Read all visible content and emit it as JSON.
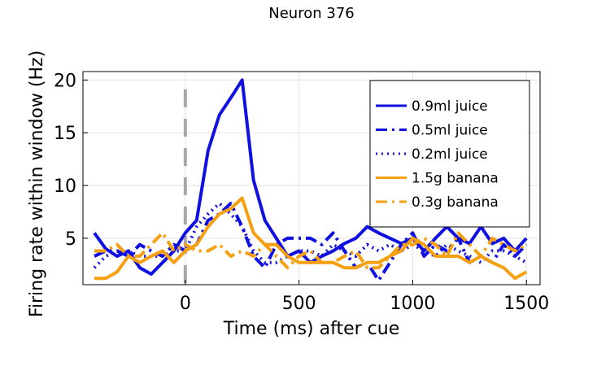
{
  "chart_data": {
    "type": "line",
    "title": "Neuron 376",
    "xlabel": "Time (ms) after cue",
    "ylabel": "Firing rate within window (Hz)",
    "xlim": [
      -450,
      1560
    ],
    "ylim": [
      0.6,
      20.8
    ],
    "xticks": [
      0,
      500,
      1000,
      1500
    ],
    "yticks": [
      5,
      10,
      15,
      20
    ],
    "grid": true,
    "legend_position": "top-right",
    "cue_line_x": 0,
    "series": [
      {
        "name": "0.9ml juice",
        "color": "#1010e0",
        "dash": "solid",
        "x": [
          -400,
          -350,
          -300,
          -250,
          -200,
          -150,
          -100,
          -50,
          0,
          50,
          100,
          150,
          200,
          250,
          300,
          350,
          400,
          450,
          500,
          550,
          600,
          650,
          700,
          750,
          800,
          850,
          900,
          950,
          1000,
          1050,
          1100,
          1150,
          1200,
          1250,
          1300,
          1350,
          1400,
          1450,
          1500
        ],
        "y": [
          5.5,
          4,
          3.3,
          3.8,
          2.2,
          1.6,
          2.7,
          3.8,
          5.5,
          6.7,
          13.3,
          16.7,
          18.3,
          20,
          10.5,
          6.7,
          5,
          3.3,
          3.8,
          2.7,
          3.3,
          3.8,
          4.5,
          5,
          6.1,
          5.5,
          5,
          4.5,
          5,
          3.8,
          5,
          6.1,
          5,
          4.5,
          6.1,
          4.5,
          5,
          3.8,
          5
        ]
      },
      {
        "name": "0.5ml juice",
        "color": "#1010e0",
        "dash": "dashdot",
        "x": [
          -400,
          -350,
          -300,
          -250,
          -200,
          -150,
          -100,
          -50,
          0,
          50,
          100,
          150,
          200,
          250,
          300,
          350,
          400,
          450,
          500,
          550,
          600,
          650,
          700,
          750,
          800,
          850,
          900,
          950,
          1000,
          1050,
          1100,
          1150,
          1200,
          1250,
          1300,
          1350,
          1400,
          1450,
          1500
        ],
        "y": [
          3.3,
          3.8,
          3.8,
          3.3,
          4.4,
          3.8,
          3.3,
          4.4,
          3.8,
          4.4,
          6.7,
          7.3,
          8.3,
          6.1,
          3.3,
          2.2,
          4.4,
          5,
          5,
          5,
          4.4,
          5.5,
          3.8,
          2.2,
          2.7,
          1,
          2.7,
          4.4,
          5.5,
          3.3,
          4.4,
          3.8,
          5,
          2.7,
          3.3,
          2.7,
          4.4,
          3.3,
          4.4
        ]
      },
      {
        "name": "0.2ml juice",
        "color": "#1010e0",
        "dash": "dotted",
        "x": [
          -400,
          -350,
          -300,
          -250,
          -200,
          -150,
          -100,
          -50,
          0,
          50,
          100,
          150,
          200,
          250,
          300,
          350,
          400,
          450,
          500,
          550,
          600,
          650,
          700,
          750,
          800,
          850,
          900,
          950,
          1000,
          1050,
          1100,
          1150,
          1200,
          1250,
          1300,
          1350,
          1400,
          1450,
          1500
        ],
        "y": [
          2.2,
          3.3,
          3.8,
          3.8,
          3.3,
          3.3,
          3.3,
          3.8,
          3.8,
          6.1,
          7.3,
          8.3,
          7.3,
          6.1,
          3.8,
          2.7,
          2.7,
          3.3,
          3.8,
          3.8,
          3.3,
          4.4,
          3.8,
          3.3,
          4.4,
          3.8,
          4.4,
          3.8,
          4.4,
          3.8,
          3.3,
          4.4,
          3.8,
          3.3,
          2.7,
          3.8,
          3.8,
          3.3,
          2.7
        ]
      },
      {
        "name": "1.5g banana",
        "color": "#f5a010",
        "dash": "solid",
        "x": [
          -400,
          -350,
          -300,
          -250,
          -200,
          -150,
          -100,
          -50,
          0,
          50,
          100,
          150,
          200,
          250,
          300,
          350,
          400,
          450,
          500,
          550,
          600,
          650,
          700,
          750,
          800,
          850,
          900,
          950,
          1000,
          1050,
          1100,
          1150,
          1200,
          1250,
          1300,
          1350,
          1400,
          1450,
          1500
        ],
        "y": [
          1.2,
          1.2,
          1.8,
          3.3,
          2.7,
          3.3,
          3.8,
          2.7,
          3.8,
          4.4,
          6.1,
          7.3,
          7.8,
          8.8,
          5.5,
          4.4,
          4.4,
          3.3,
          2.7,
          2.7,
          2.7,
          2.7,
          2.2,
          2.2,
          2.7,
          2.7,
          3.3,
          3.8,
          5,
          4.4,
          3.3,
          3.3,
          3.3,
          2.7,
          3.3,
          2.7,
          2.2,
          1.2,
          1.8
        ]
      },
      {
        "name": "0.3g banana",
        "color": "#f5a010",
        "dash": "dashdot",
        "x": [
          -400,
          -350,
          -300,
          -250,
          -200,
          -150,
          -100,
          -50,
          0,
          50,
          100,
          150,
          200,
          250,
          300,
          350,
          400,
          450,
          500,
          550,
          600,
          650,
          700,
          750,
          800,
          850,
          900,
          950,
          1000,
          1050,
          1100,
          1150,
          1200,
          1250,
          1300,
          1350,
          1400,
          1450,
          1500
        ],
        "y": [
          3.8,
          3.8,
          4.4,
          3.3,
          3.3,
          4.4,
          5.5,
          3.8,
          4.4,
          3.8,
          3.8,
          4.4,
          3.3,
          3.8,
          3.3,
          4.4,
          3.3,
          2.2,
          3.3,
          3.8,
          2.7,
          2.7,
          3.3,
          3.8,
          2.2,
          2.2,
          3.3,
          4.4,
          4.4,
          5,
          4.4,
          3.3,
          5.5,
          4.4,
          3.3,
          5,
          4.4,
          3.8,
          4.4
        ]
      }
    ]
  }
}
